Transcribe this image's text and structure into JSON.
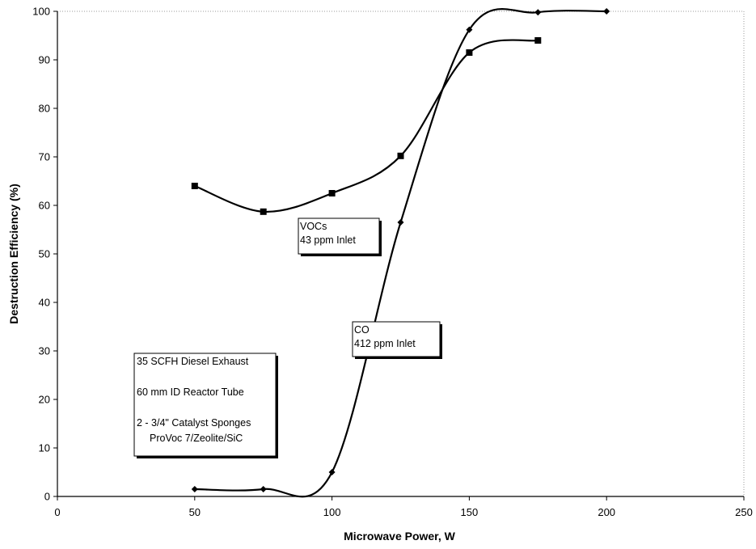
{
  "chart_data": {
    "type": "line",
    "xlabel": "Microwave Power, W",
    "ylabel": "Destruction Efficiency (%)",
    "xlim": [
      0,
      250
    ],
    "ylim": [
      0,
      100
    ],
    "x_ticks": [
      0,
      50,
      100,
      150,
      200,
      250
    ],
    "y_ticks": [
      0,
      10,
      20,
      30,
      40,
      50,
      60,
      70,
      80,
      90,
      100
    ],
    "grid": false,
    "series": [
      {
        "name": "VOCs",
        "marker": "square",
        "color": "#000000",
        "x": [
          50,
          75,
          100,
          125,
          150,
          175
        ],
        "y": [
          64,
          58.7,
          62.5,
          70.2,
          91.5,
          94
        ]
      },
      {
        "name": "CO",
        "marker": "diamond",
        "color": "#000000",
        "x": [
          50,
          75,
          100,
          125,
          150,
          175,
          200
        ],
        "y": [
          1.5,
          1.5,
          5,
          56.5,
          96.2,
          99.8,
          100
        ]
      }
    ],
    "annotations": [
      {
        "id": "vocs",
        "lines": [
          "VOCs",
          "43 ppm Inlet"
        ]
      },
      {
        "id": "co",
        "lines": [
          "CO",
          "412 ppm Inlet"
        ]
      },
      {
        "id": "conditions",
        "lines": [
          "35 SCFH Diesel Exhaust",
          "",
          "60 mm ID Reactor Tube",
          "",
          "2 - 3/4\" Catalyst Sponges",
          "ProVoc 7/Zeolite/SiC"
        ]
      }
    ]
  }
}
